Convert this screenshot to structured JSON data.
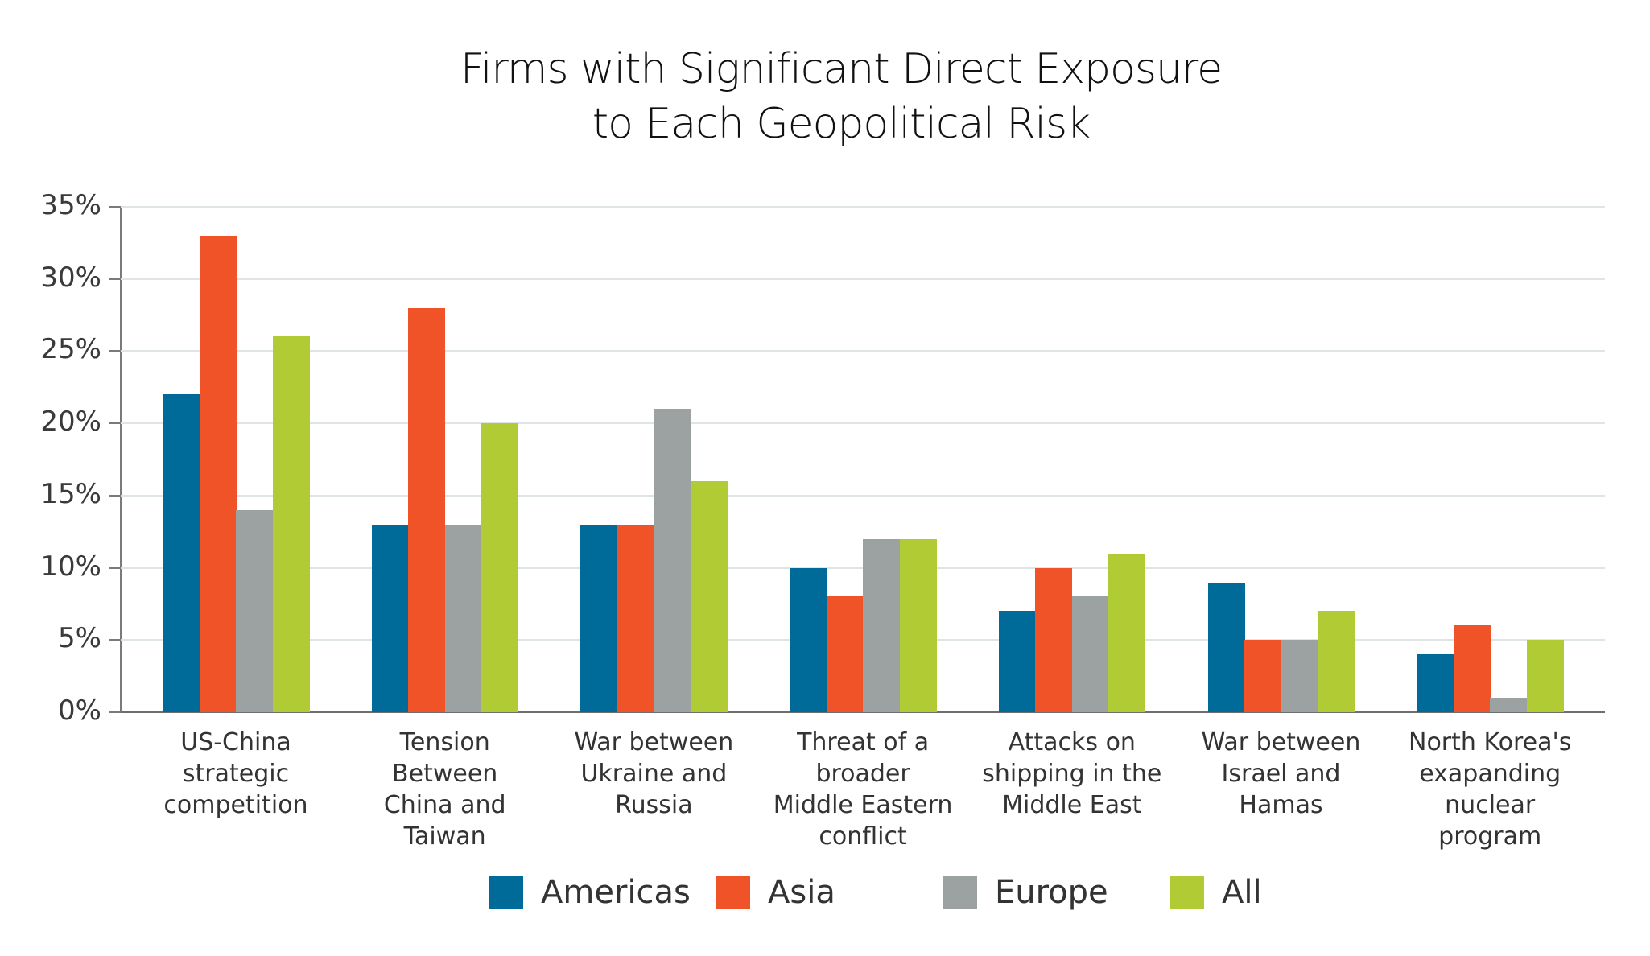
{
  "chart_data": {
    "type": "bar",
    "title": "Firms with Significant Direct Exposure to Each Geopolitical Risk",
    "title_lines": [
      "Firms with Significant Direct Exposure",
      "to Each Geopolitical Risk"
    ],
    "xlabel": "",
    "ylabel": "",
    "ylim": [
      0,
      35
    ],
    "yticks": [
      "0%",
      "5%",
      "10%",
      "15%",
      "20%",
      "25%",
      "30%",
      "35%"
    ],
    "grid": true,
    "legend_position": "bottom",
    "categories": [
      "US-China strategic competition",
      "Tension Between China and Taiwan",
      "War between Ukraine and Russia",
      "Threat of a broader Middle Eastern conflict",
      "Attacks on shipping in the Middle East",
      "War between Israel and Hamas",
      "North Korea's exapanding nuclear program"
    ],
    "category_lines": [
      [
        "US-China",
        "strategic",
        "competition"
      ],
      [
        "Tension",
        "Between",
        "China and",
        "Taiwan"
      ],
      [
        "War between",
        "Ukraine and",
        "Russia"
      ],
      [
        "Threat of a",
        "broader",
        "Middle Eastern",
        "conflict"
      ],
      [
        "Attacks on",
        "shipping in the",
        "Middle East"
      ],
      [
        "War between",
        "Israel and",
        "Hamas"
      ],
      [
        "North Korea's",
        "exapanding",
        "nuclear",
        "program"
      ]
    ],
    "series": [
      {
        "name": "Americas",
        "color": "#006b99",
        "values": [
          22,
          13,
          13,
          10,
          7,
          9,
          4
        ]
      },
      {
        "name": "Asia",
        "color": "#f05328",
        "values": [
          33,
          28,
          13,
          8,
          10,
          5,
          6
        ]
      },
      {
        "name": "Europe",
        "color": "#9ba2a1",
        "values": [
          14,
          13,
          21,
          12,
          8,
          5,
          1
        ]
      },
      {
        "name": "All",
        "color": "#b1cb35",
        "values": [
          26,
          20,
          16,
          12,
          11,
          7,
          5
        ]
      }
    ]
  }
}
